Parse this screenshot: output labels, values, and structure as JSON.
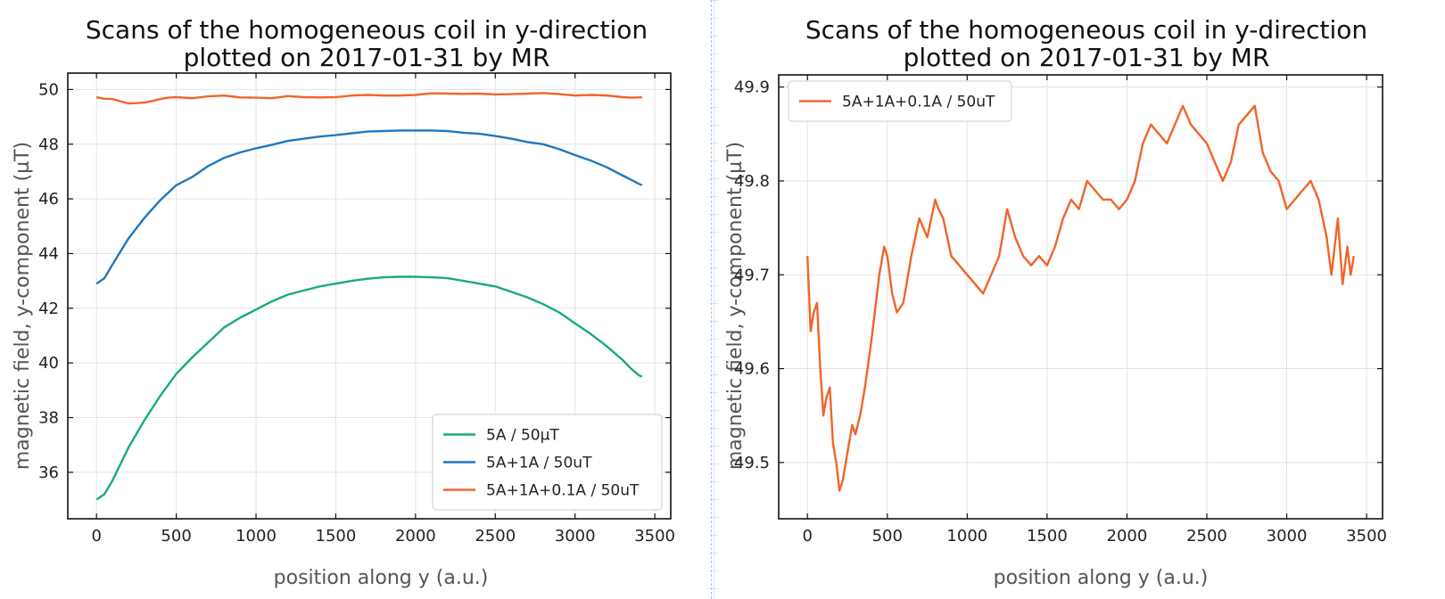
{
  "chart_data": [
    {
      "type": "line",
      "title": [
        "Scans of the homogeneous coil in y-direction",
        "plotted on 2017-01-31 by MR"
      ],
      "xlabel": "position along y (a.u.)",
      "ylabel": "magnetic field, y-component (µT)",
      "xlim": [
        -180,
        3600
      ],
      "ylim": [
        34.3,
        50.6
      ],
      "xticks": [
        0,
        500,
        1000,
        1500,
        2000,
        2500,
        3000,
        3500
      ],
      "yticks": [
        36,
        38,
        40,
        42,
        44,
        46,
        48,
        50
      ],
      "grid": true,
      "legend_position": "lower-right",
      "series": [
        {
          "name": "5A / 50µT",
          "color": "#1aaa7f",
          "x": [
            0,
            50,
            100,
            200,
            300,
            400,
            500,
            600,
            700,
            800,
            900,
            1000,
            1100,
            1200,
            1300,
            1400,
            1500,
            1600,
            1700,
            1800,
            1900,
            2000,
            2100,
            2200,
            2300,
            2400,
            2500,
            2600,
            2700,
            2800,
            2900,
            3000,
            3100,
            3200,
            3300,
            3350,
            3400,
            3420
          ],
          "values": [
            35.0,
            35.2,
            35.7,
            36.9,
            37.9,
            38.8,
            39.6,
            40.2,
            40.75,
            41.3,
            41.65,
            41.95,
            42.25,
            42.5,
            42.65,
            42.8,
            42.9,
            43.0,
            43.08,
            43.13,
            43.15,
            43.15,
            43.13,
            43.1,
            43.0,
            42.9,
            42.8,
            42.6,
            42.4,
            42.15,
            41.85,
            41.45,
            41.05,
            40.6,
            40.1,
            39.8,
            39.55,
            39.5
          ]
        },
        {
          "name": "5A+1A / 50uT",
          "color": "#1f78c1",
          "x": [
            0,
            50,
            100,
            200,
            300,
            400,
            500,
            600,
            700,
            800,
            900,
            1000,
            1100,
            1200,
            1300,
            1400,
            1500,
            1600,
            1700,
            1800,
            1900,
            2000,
            2100,
            2200,
            2300,
            2400,
            2500,
            2600,
            2700,
            2800,
            2900,
            3000,
            3100,
            3200,
            3300,
            3350,
            3400,
            3420
          ],
          "values": [
            42.9,
            43.1,
            43.6,
            44.55,
            45.3,
            45.95,
            46.5,
            46.8,
            47.2,
            47.5,
            47.7,
            47.85,
            47.98,
            48.12,
            48.2,
            48.28,
            48.33,
            48.4,
            48.46,
            48.48,
            48.5,
            48.5,
            48.5,
            48.48,
            48.42,
            48.38,
            48.3,
            48.2,
            48.08,
            48.0,
            47.82,
            47.6,
            47.4,
            47.15,
            46.85,
            46.7,
            46.55,
            46.5
          ]
        },
        {
          "name": "5A+1A+0.1A / 50uT",
          "color": "#f0652a",
          "x": [
            0,
            50,
            100,
            150,
            200,
            250,
            300,
            350,
            400,
            450,
            500,
            600,
            700,
            800,
            900,
            1000,
            1100,
            1200,
            1300,
            1400,
            1500,
            1600,
            1700,
            1800,
            1900,
            2000,
            2100,
            2200,
            2300,
            2400,
            2500,
            2600,
            2700,
            2800,
            2900,
            3000,
            3100,
            3200,
            3300,
            3350,
            3400,
            3420
          ],
          "values": [
            49.72,
            49.66,
            49.65,
            49.57,
            49.49,
            49.5,
            49.52,
            49.58,
            49.65,
            49.7,
            49.72,
            49.68,
            49.75,
            49.78,
            49.71,
            49.7,
            49.68,
            49.76,
            49.72,
            49.71,
            49.72,
            49.78,
            49.8,
            49.78,
            49.78,
            49.8,
            49.86,
            49.85,
            49.84,
            49.85,
            49.82,
            49.83,
            49.85,
            49.87,
            49.83,
            49.78,
            49.8,
            49.78,
            49.72,
            49.7,
            49.71,
            49.72
          ]
        }
      ]
    },
    {
      "type": "line",
      "title": [
        "Scans of the homogeneous coil in y-direction",
        "plotted on 2017-01-31 by MR"
      ],
      "xlabel": "position along y (a.u.)",
      "ylabel": "magnetic field, y-component (µT)",
      "xlim": [
        -180,
        3600
      ],
      "ylim": [
        49.44,
        49.913
      ],
      "xticks": [
        0,
        500,
        1000,
        1500,
        2000,
        2500,
        3000,
        3500
      ],
      "yticks": [
        49.5,
        49.6,
        49.7,
        49.8,
        49.9
      ],
      "ytick_labels": [
        "49.5",
        "49.6",
        "49.7",
        "49.8",
        "49.9"
      ],
      "grid": true,
      "legend_position": "upper-left",
      "series": [
        {
          "name": "5A+1A+0.1A / 50uT",
          "color": "#f0652a",
          "x": [
            0,
            20,
            40,
            60,
            80,
            100,
            120,
            140,
            160,
            180,
            200,
            220,
            250,
            280,
            300,
            330,
            360,
            400,
            450,
            480,
            500,
            530,
            560,
            600,
            650,
            700,
            750,
            800,
            820,
            850,
            900,
            950,
            1000,
            1050,
            1100,
            1150,
            1200,
            1250,
            1300,
            1350,
            1400,
            1450,
            1500,
            1550,
            1600,
            1650,
            1700,
            1750,
            1800,
            1850,
            1900,
            1950,
            2000,
            2050,
            2100,
            2150,
            2200,
            2250,
            2300,
            2350,
            2400,
            2450,
            2500,
            2550,
            2600,
            2650,
            2700,
            2750,
            2800,
            2850,
            2900,
            2950,
            3000,
            3050,
            3100,
            3150,
            3200,
            3250,
            3280,
            3300,
            3320,
            3350,
            3380,
            3400,
            3420
          ],
          "values": [
            49.72,
            49.64,
            49.66,
            49.67,
            49.6,
            49.55,
            49.57,
            49.58,
            49.52,
            49.5,
            49.47,
            49.48,
            49.51,
            49.54,
            49.53,
            49.55,
            49.58,
            49.63,
            49.7,
            49.73,
            49.72,
            49.68,
            49.66,
            49.67,
            49.72,
            49.76,
            49.74,
            49.78,
            49.77,
            49.76,
            49.72,
            49.71,
            49.7,
            49.69,
            49.68,
            49.7,
            49.72,
            49.77,
            49.74,
            49.72,
            49.71,
            49.72,
            49.71,
            49.73,
            49.76,
            49.78,
            49.77,
            49.8,
            49.79,
            49.78,
            49.78,
            49.77,
            49.78,
            49.8,
            49.84,
            49.86,
            49.85,
            49.84,
            49.86,
            49.88,
            49.86,
            49.85,
            49.84,
            49.82,
            49.8,
            49.82,
            49.86,
            49.87,
            49.88,
            49.83,
            49.81,
            49.8,
            49.77,
            49.78,
            49.79,
            49.8,
            49.78,
            49.74,
            49.7,
            49.73,
            49.76,
            49.69,
            49.73,
            49.7,
            49.72
          ]
        }
      ]
    }
  ]
}
